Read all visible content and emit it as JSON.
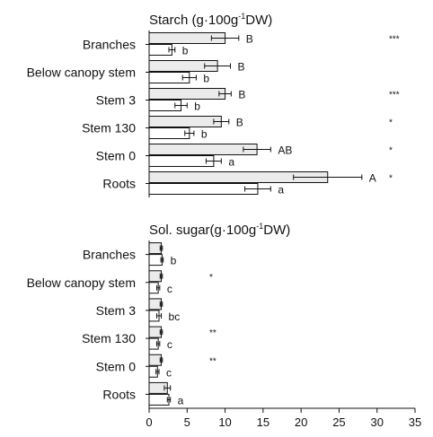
{
  "colors": {
    "bar_a": "#ebebeb",
    "bar_b": "#ffffff",
    "ink": "#111111"
  },
  "chart_data": [
    {
      "type": "bar",
      "orientation": "horizontal",
      "title_main": "Starch (g·100g",
      "title_sup": "-1",
      "title_end": "DW)",
      "categories": [
        "Branches",
        "Below canopy stem",
        "Stem 3",
        "Stem 130",
        "Stem 0",
        "Roots"
      ],
      "series": [
        {
          "values": [
            10.0,
            9.0,
            10.0,
            9.5,
            14.2,
            23.5
          ],
          "errors": [
            1.8,
            1.7,
            0.8,
            1.0,
            1.8,
            4.5
          ],
          "letters": [
            "B",
            "B",
            "B",
            "B",
            "AB",
            "A"
          ]
        },
        {
          "values": [
            3.0,
            5.3,
            4.2,
            5.3,
            8.5,
            14.3
          ],
          "errors": [
            0.4,
            0.9,
            0.8,
            0.6,
            1.0,
            1.7
          ],
          "letters": [
            "b",
            "b",
            "b",
            "b",
            "a",
            "a"
          ]
        }
      ],
      "significance": [
        "***",
        "",
        "***",
        "*",
        "*",
        "*"
      ],
      "xlim": [
        0,
        35
      ]
    },
    {
      "type": "bar",
      "orientation": "horizontal",
      "title_main": "Sol. sugar(g·100g",
      "title_sup": "-1",
      "title_end": "DW)",
      "categories": [
        "Branches",
        "Below canopy stem",
        "Stem 3",
        "Stem 130",
        "Stem 0",
        "Roots"
      ],
      "series": [
        {
          "values": [
            1.6,
            1.6,
            1.6,
            1.6,
            1.6,
            2.4
          ],
          "errors": [
            0.15,
            0.15,
            0.15,
            0.15,
            0.15,
            0.4
          ],
          "letters": [
            "",
            "",
            "",
            "",
            "",
            ""
          ]
        },
        {
          "values": [
            1.7,
            1.2,
            1.3,
            1.2,
            1.1,
            2.6
          ],
          "errors": [
            0.15,
            0.2,
            0.3,
            0.2,
            0.2,
            0.2
          ],
          "letters": [
            "b",
            "c",
            "bc",
            "c",
            "c",
            "a"
          ]
        }
      ],
      "significance": [
        "",
        "*",
        "",
        "**",
        "**",
        ""
      ],
      "xlim": [
        0,
        35
      ],
      "xticks": [
        "0",
        "5",
        "10",
        "15",
        "20",
        "25",
        "30",
        "35"
      ]
    }
  ]
}
